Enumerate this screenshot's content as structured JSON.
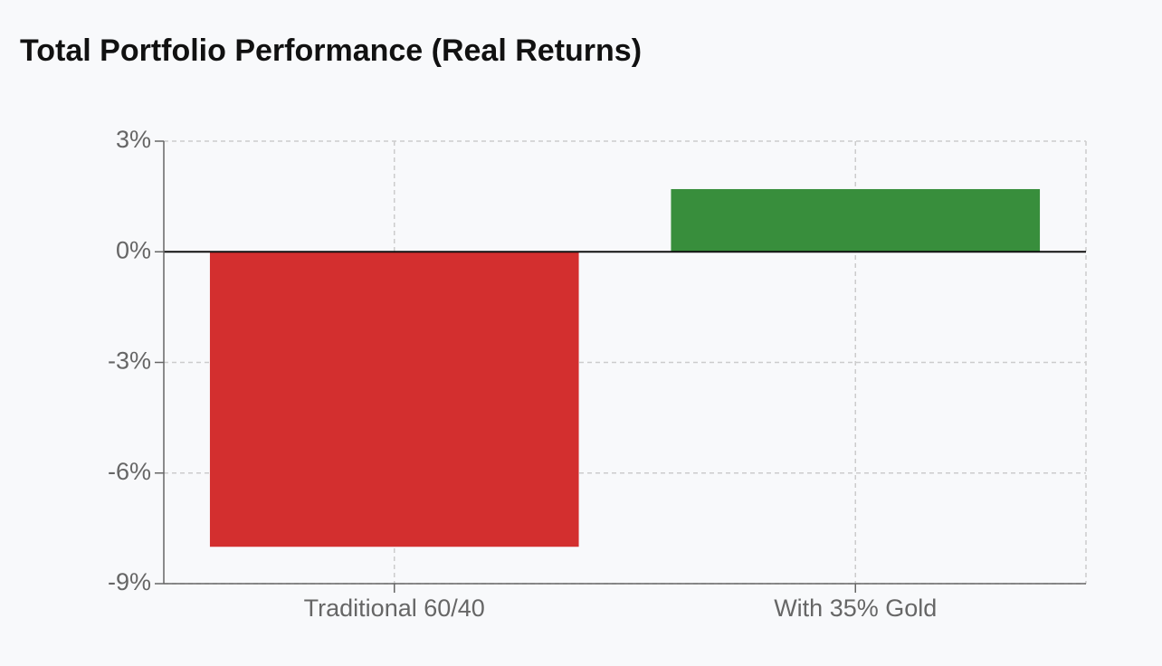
{
  "chart_data": {
    "type": "bar",
    "title": "Total Portfolio Performance (Real Returns)",
    "categories": [
      "Traditional 60/40",
      "With 35% Gold"
    ],
    "values": [
      -8,
      1.7
    ],
    "colors": [
      "#d32f2f",
      "#388e3c"
    ],
    "ylim": [
      -9,
      3
    ],
    "yticks": [
      {
        "value": -9,
        "label": "-9%"
      },
      {
        "value": -6,
        "label": "-6%"
      },
      {
        "value": -3,
        "label": "-3%"
      },
      {
        "value": 0,
        "label": "0%"
      },
      {
        "value": 3,
        "label": "3%"
      }
    ],
    "grid": true
  }
}
